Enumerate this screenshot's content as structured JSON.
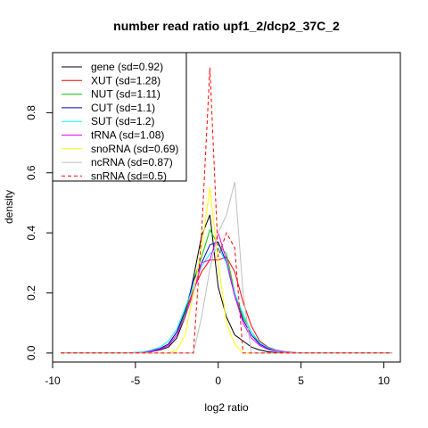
{
  "chart_data": {
    "type": "line",
    "title": "number read ratio upf1_2/dcp2_37C_2",
    "xlabel": "log2 ratio",
    "ylabel": "density",
    "xlim": [
      -10,
      11
    ],
    "ylim": [
      -0.03,
      1.0
    ],
    "x_ticks": [
      -10,
      -5,
      0,
      5,
      10
    ],
    "y_ticks": [
      0.0,
      0.2,
      0.4,
      0.6,
      0.8
    ],
    "grid": false,
    "legend_position": "top-left",
    "series": [
      {
        "name": "gene (sd=0.92)",
        "color": "#000000",
        "dash": "solid",
        "x": [
          -9.5,
          -5.5,
          -4.5,
          -4.0,
          -3.5,
          -3.0,
          -2.5,
          -2.0,
          -1.5,
          -1.0,
          -0.5,
          0.0,
          0.5,
          1.0,
          1.5,
          2.0,
          2.5,
          3.0,
          3.5,
          4.0,
          5.0,
          10.5
        ],
        "y": [
          0.0,
          0.0,
          0.002,
          0.005,
          0.01,
          0.02,
          0.05,
          0.12,
          0.25,
          0.39,
          0.46,
          0.22,
          0.12,
          0.06,
          0.04,
          0.02,
          0.01,
          0.004,
          0.002,
          0.0,
          0.0,
          0.0
        ]
      },
      {
        "name": "XUT (sd=1.28)",
        "color": "#ff0000",
        "dash": "solid",
        "x": [
          -9.5,
          -5.5,
          -4.5,
          -4.0,
          -3.5,
          -3.0,
          -2.5,
          -2.0,
          -1.5,
          -1.0,
          -0.5,
          0.0,
          0.5,
          1.0,
          1.5,
          2.0,
          2.5,
          3.0,
          3.5,
          4.0,
          5.0,
          10.5
        ],
        "y": [
          0.0,
          0.0,
          0.003,
          0.008,
          0.015,
          0.03,
          0.07,
          0.13,
          0.21,
          0.27,
          0.31,
          0.31,
          0.32,
          0.27,
          0.17,
          0.09,
          0.04,
          0.02,
          0.01,
          0.005,
          0.0,
          0.0
        ]
      },
      {
        "name": "NUT (sd=1.11)",
        "color": "#00cc00",
        "dash": "solid",
        "x": [
          -9.5,
          -5.5,
          -4.5,
          -4.0,
          -3.5,
          -3.0,
          -2.5,
          -2.0,
          -1.5,
          -1.0,
          -0.5,
          0.0,
          0.5,
          1.0,
          1.5,
          2.0,
          2.5,
          3.0,
          3.5,
          4.0,
          5.0,
          10.5
        ],
        "y": [
          0.0,
          0.0,
          0.003,
          0.006,
          0.012,
          0.025,
          0.06,
          0.13,
          0.24,
          0.32,
          0.41,
          0.36,
          0.33,
          0.2,
          0.12,
          0.07,
          0.03,
          0.015,
          0.008,
          0.004,
          0.0,
          0.0
        ]
      },
      {
        "name": "CUT (sd=1.1)",
        "color": "#0000cc",
        "dash": "solid",
        "x": [
          -9.5,
          -5.5,
          -4.5,
          -4.0,
          -3.5,
          -3.0,
          -2.5,
          -2.0,
          -1.5,
          -1.0,
          -0.5,
          0.0,
          0.5,
          1.0,
          1.5,
          2.0,
          2.5,
          3.0,
          3.5,
          4.0,
          5.0,
          10.5
        ],
        "y": [
          0.0,
          0.0,
          0.003,
          0.007,
          0.015,
          0.03,
          0.07,
          0.14,
          0.24,
          0.3,
          0.36,
          0.37,
          0.3,
          0.19,
          0.11,
          0.06,
          0.03,
          0.015,
          0.007,
          0.003,
          0.0,
          0.0
        ]
      },
      {
        "name": "SUT (sd=1.2)",
        "color": "#00ffff",
        "dash": "solid",
        "x": [
          -9.5,
          -5.5,
          -4.5,
          -4.0,
          -3.5,
          -3.0,
          -2.5,
          -2.0,
          -1.5,
          -1.0,
          -0.5,
          0.0,
          0.5,
          1.0,
          1.5,
          2.0,
          2.5,
          3.0,
          3.5,
          4.0,
          5.0,
          10.5
        ],
        "y": [
          0.0,
          0.0,
          0.004,
          0.01,
          0.02,
          0.04,
          0.08,
          0.15,
          0.22,
          0.29,
          0.33,
          0.35,
          0.3,
          0.2,
          0.13,
          0.07,
          0.035,
          0.018,
          0.009,
          0.004,
          0.0,
          0.0
        ]
      },
      {
        "name": "tRNA (sd=1.08)",
        "color": "#ff00ff",
        "dash": "solid",
        "x": [
          -9.5,
          -5.5,
          -4.5,
          -4.0,
          -3.5,
          -3.0,
          -2.5,
          -2.0,
          -1.5,
          -1.0,
          -0.5,
          0.0,
          0.5,
          1.0,
          1.5,
          2.0,
          2.5,
          3.0,
          3.5,
          4.0,
          5.0,
          10.5
        ],
        "y": [
          0.0,
          0.0,
          0.002,
          0.006,
          0.012,
          0.025,
          0.06,
          0.12,
          0.2,
          0.3,
          0.31,
          0.4,
          0.31,
          0.19,
          0.1,
          0.05,
          0.025,
          0.012,
          0.006,
          0.003,
          0.0,
          0.0
        ]
      },
      {
        "name": "snoRNA (sd=0.69)",
        "color": "#ffff00",
        "dash": "solid",
        "x": [
          -9.5,
          -5.5,
          -4.5,
          -4.0,
          -3.5,
          -3.0,
          -2.5,
          -2.0,
          -1.5,
          -1.0,
          -0.5,
          0.0,
          0.5,
          1.0,
          1.5,
          2.0,
          10.5
        ],
        "y": [
          0.0,
          0.0,
          0.0,
          0.0,
          0.0,
          0.0,
          0.01,
          0.06,
          0.2,
          0.35,
          0.55,
          0.3,
          0.1,
          0.03,
          0.0,
          0.0,
          0.0
        ]
      },
      {
        "name": "ncRNA (sd=0.87)",
        "color": "#bebebe",
        "dash": "solid",
        "x": [
          -9.5,
          -2.0,
          -1.5,
          -1.0,
          -0.5,
          0.0,
          0.5,
          1.0,
          1.5,
          2.0,
          10.5
        ],
        "y": [
          0.0,
          0.0,
          0.0,
          0.12,
          0.28,
          0.4,
          0.46,
          0.57,
          0.2,
          0.0,
          0.0
        ]
      },
      {
        "name": "snRNA (sd=0.5)",
        "color": "#ff0000",
        "dash": "dashed",
        "x": [
          -9.5,
          -1.5,
          -1.0,
          -0.5,
          0.0,
          0.5,
          1.0,
          1.5,
          10.5
        ],
        "y": [
          0.0,
          0.0,
          0.4,
          0.95,
          0.32,
          0.4,
          0.35,
          0.0,
          0.0
        ]
      }
    ]
  }
}
